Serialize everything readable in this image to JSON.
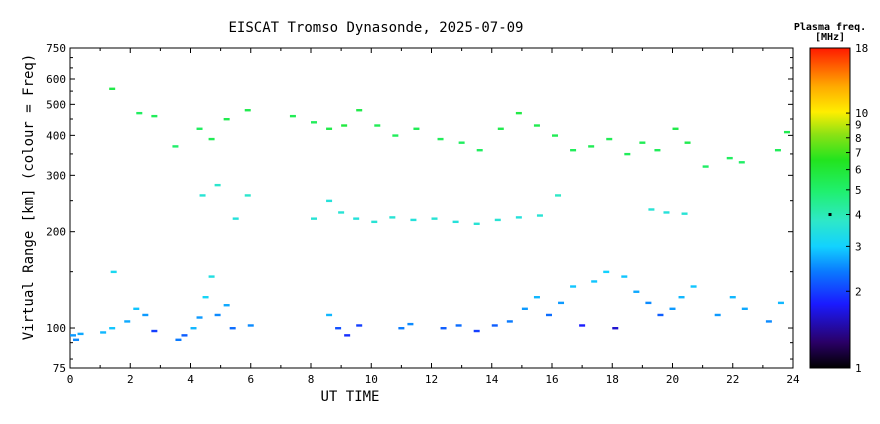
{
  "chart_data": {
    "type": "scatter",
    "title": "EISCAT Tromso Dynasonde, 2025-07-09",
    "xlabel": "UT TIME",
    "ylabel": "Virtual Range [km] (colour = Freq)",
    "xlim": [
      0,
      24
    ],
    "ylim": [
      75,
      750
    ],
    "y_scale": "log",
    "x_ticks": [
      0,
      2,
      4,
      6,
      8,
      10,
      12,
      14,
      16,
      18,
      20,
      22,
      24
    ],
    "y_ticks": [
      75,
      100,
      200,
      300,
      400,
      500,
      600,
      750
    ],
    "colorbar": {
      "title_line1": "Plasma freq.",
      "title_line2": "[MHz]",
      "scale": "log",
      "range": [
        1,
        18
      ],
      "ticks": [
        1,
        2,
        3,
        4,
        5,
        6,
        7,
        8,
        9,
        10,
        18
      ],
      "marker_value": 4
    },
    "series": [
      {
        "values": [
          {
            "x": 0.1,
            "y": 95,
            "f": 2.6
          },
          {
            "x": 0.2,
            "y": 92,
            "f": 2.5
          },
          {
            "x": 0.35,
            "y": 96,
            "f": 2.7
          },
          {
            "x": 1.1,
            "y": 97,
            "f": 2.8
          },
          {
            "x": 1.4,
            "y": 100,
            "f": 2.9
          },
          {
            "x": 1.45,
            "y": 150,
            "f": 3.2
          },
          {
            "x": 1.9,
            "y": 105,
            "f": 2.7
          },
          {
            "x": 2.2,
            "y": 115,
            "f": 2.9
          },
          {
            "x": 2.5,
            "y": 110,
            "f": 2.6
          },
          {
            "x": 2.8,
            "y": 98,
            "f": 2.0
          },
          {
            "x": 3.6,
            "y": 92,
            "f": 2.4
          },
          {
            "x": 3.8,
            "y": 95,
            "f": 2.2
          },
          {
            "x": 4.1,
            "y": 100,
            "f": 2.8
          },
          {
            "x": 4.3,
            "y": 108,
            "f": 2.6
          },
          {
            "x": 4.5,
            "y": 125,
            "f": 3.1
          },
          {
            "x": 4.7,
            "y": 145,
            "f": 3.4
          },
          {
            "x": 4.9,
            "y": 110,
            "f": 2.5
          },
          {
            "x": 5.2,
            "y": 118,
            "f": 2.7
          },
          {
            "x": 5.4,
            "y": 100,
            "f": 2.3
          },
          {
            "x": 6.0,
            "y": 102,
            "f": 2.5
          },
          {
            "x": 8.6,
            "y": 110,
            "f": 2.8
          },
          {
            "x": 8.9,
            "y": 100,
            "f": 2.1
          },
          {
            "x": 9.2,
            "y": 95,
            "f": 1.9
          },
          {
            "x": 9.6,
            "y": 102,
            "f": 2.0
          },
          {
            "x": 11.0,
            "y": 100,
            "f": 2.4
          },
          {
            "x": 11.3,
            "y": 103,
            "f": 2.5
          },
          {
            "x": 12.4,
            "y": 100,
            "f": 2.2
          },
          {
            "x": 12.9,
            "y": 102,
            "f": 2.3
          },
          {
            "x": 13.5,
            "y": 98,
            "f": 2.0
          },
          {
            "x": 14.1,
            "y": 102,
            "f": 2.2
          },
          {
            "x": 14.6,
            "y": 105,
            "f": 2.4
          },
          {
            "x": 15.1,
            "y": 115,
            "f": 2.6
          },
          {
            "x": 15.5,
            "y": 125,
            "f": 2.8
          },
          {
            "x": 15.9,
            "y": 110,
            "f": 2.3
          },
          {
            "x": 16.3,
            "y": 120,
            "f": 2.6
          },
          {
            "x": 16.7,
            "y": 135,
            "f": 2.9
          },
          {
            "x": 17.0,
            "y": 102,
            "f": 1.8
          },
          {
            "x": 17.4,
            "y": 140,
            "f": 2.9
          },
          {
            "x": 17.8,
            "y": 150,
            "f": 3.0
          },
          {
            "x": 18.1,
            "y": 100,
            "f": 1.6
          },
          {
            "x": 18.4,
            "y": 145,
            "f": 2.9
          },
          {
            "x": 18.8,
            "y": 130,
            "f": 2.7
          },
          {
            "x": 19.2,
            "y": 120,
            "f": 2.5
          },
          {
            "x": 19.6,
            "y": 110,
            "f": 2.2
          },
          {
            "x": 20.0,
            "y": 115,
            "f": 2.6
          },
          {
            "x": 20.3,
            "y": 125,
            "f": 2.8
          },
          {
            "x": 20.7,
            "y": 135,
            "f": 2.9
          },
          {
            "x": 21.5,
            "y": 110,
            "f": 2.6
          },
          {
            "x": 22.0,
            "y": 125,
            "f": 2.8
          },
          {
            "x": 22.4,
            "y": 115,
            "f": 2.7
          },
          {
            "x": 23.2,
            "y": 105,
            "f": 2.5
          },
          {
            "x": 23.6,
            "y": 120,
            "f": 2.8
          },
          {
            "x": 8.1,
            "y": 220,
            "f": 3.6
          },
          {
            "x": 8.6,
            "y": 250,
            "f": 3.5
          },
          {
            "x": 9.0,
            "y": 230,
            "f": 3.6
          },
          {
            "x": 9.5,
            "y": 220,
            "f": 3.5
          },
          {
            "x": 10.1,
            "y": 215,
            "f": 3.6
          },
          {
            "x": 10.7,
            "y": 222,
            "f": 3.6
          },
          {
            "x": 11.4,
            "y": 218,
            "f": 3.5
          },
          {
            "x": 12.1,
            "y": 220,
            "f": 3.6
          },
          {
            "x": 12.8,
            "y": 215,
            "f": 3.5
          },
          {
            "x": 13.5,
            "y": 212,
            "f": 3.6
          },
          {
            "x": 14.2,
            "y": 218,
            "f": 3.6
          },
          {
            "x": 14.9,
            "y": 222,
            "f": 3.5
          },
          {
            "x": 15.6,
            "y": 225,
            "f": 3.6
          },
          {
            "x": 16.2,
            "y": 260,
            "f": 3.8
          },
          {
            "x": 19.3,
            "y": 235,
            "f": 3.6
          },
          {
            "x": 19.8,
            "y": 230,
            "f": 3.5
          },
          {
            "x": 20.4,
            "y": 228,
            "f": 3.6
          },
          {
            "x": 4.4,
            "y": 260,
            "f": 3.6
          },
          {
            "x": 4.9,
            "y": 280,
            "f": 3.7
          },
          {
            "x": 5.5,
            "y": 220,
            "f": 3.5
          },
          {
            "x": 5.9,
            "y": 260,
            "f": 3.7
          },
          {
            "x": 1.4,
            "y": 560,
            "f": 5.6
          },
          {
            "x": 2.3,
            "y": 470,
            "f": 5.2
          },
          {
            "x": 2.8,
            "y": 460,
            "f": 5.3
          },
          {
            "x": 3.5,
            "y": 370,
            "f": 5.0
          },
          {
            "x": 4.3,
            "y": 420,
            "f": 5.2
          },
          {
            "x": 4.7,
            "y": 390,
            "f": 5.4
          },
          {
            "x": 5.2,
            "y": 450,
            "f": 5.5
          },
          {
            "x": 5.9,
            "y": 480,
            "f": 5.5
          },
          {
            "x": 7.4,
            "y": 460,
            "f": 5.4
          },
          {
            "x": 8.1,
            "y": 440,
            "f": 5.3
          },
          {
            "x": 8.6,
            "y": 420,
            "f": 5.6
          },
          {
            "x": 9.1,
            "y": 430,
            "f": 5.8
          },
          {
            "x": 9.6,
            "y": 480,
            "f": 5.6
          },
          {
            "x": 10.2,
            "y": 430,
            "f": 5.4
          },
          {
            "x": 10.8,
            "y": 400,
            "f": 5.3
          },
          {
            "x": 11.5,
            "y": 420,
            "f": 5.4
          },
          {
            "x": 12.3,
            "y": 390,
            "f": 5.3
          },
          {
            "x": 13.0,
            "y": 380,
            "f": 5.2
          },
          {
            "x": 13.6,
            "y": 360,
            "f": 5.2
          },
          {
            "x": 14.3,
            "y": 420,
            "f": 5.5
          },
          {
            "x": 14.9,
            "y": 470,
            "f": 5.7
          },
          {
            "x": 15.5,
            "y": 430,
            "f": 5.5
          },
          {
            "x": 16.1,
            "y": 400,
            "f": 5.4
          },
          {
            "x": 16.7,
            "y": 360,
            "f": 5.3
          },
          {
            "x": 17.3,
            "y": 370,
            "f": 5.4
          },
          {
            "x": 17.9,
            "y": 390,
            "f": 5.4
          },
          {
            "x": 18.5,
            "y": 350,
            "f": 5.3
          },
          {
            "x": 19.0,
            "y": 380,
            "f": 5.4
          },
          {
            "x": 19.5,
            "y": 360,
            "f": 5.3
          },
          {
            "x": 20.1,
            "y": 420,
            "f": 5.6
          },
          {
            "x": 20.5,
            "y": 380,
            "f": 5.5
          },
          {
            "x": 21.1,
            "y": 320,
            "f": 5.1
          },
          {
            "x": 21.9,
            "y": 340,
            "f": 5.2
          },
          {
            "x": 22.3,
            "y": 330,
            "f": 5.1
          },
          {
            "x": 23.5,
            "y": 360,
            "f": 5.3
          },
          {
            "x": 23.8,
            "y": 410,
            "f": 5.5
          }
        ]
      }
    ]
  }
}
